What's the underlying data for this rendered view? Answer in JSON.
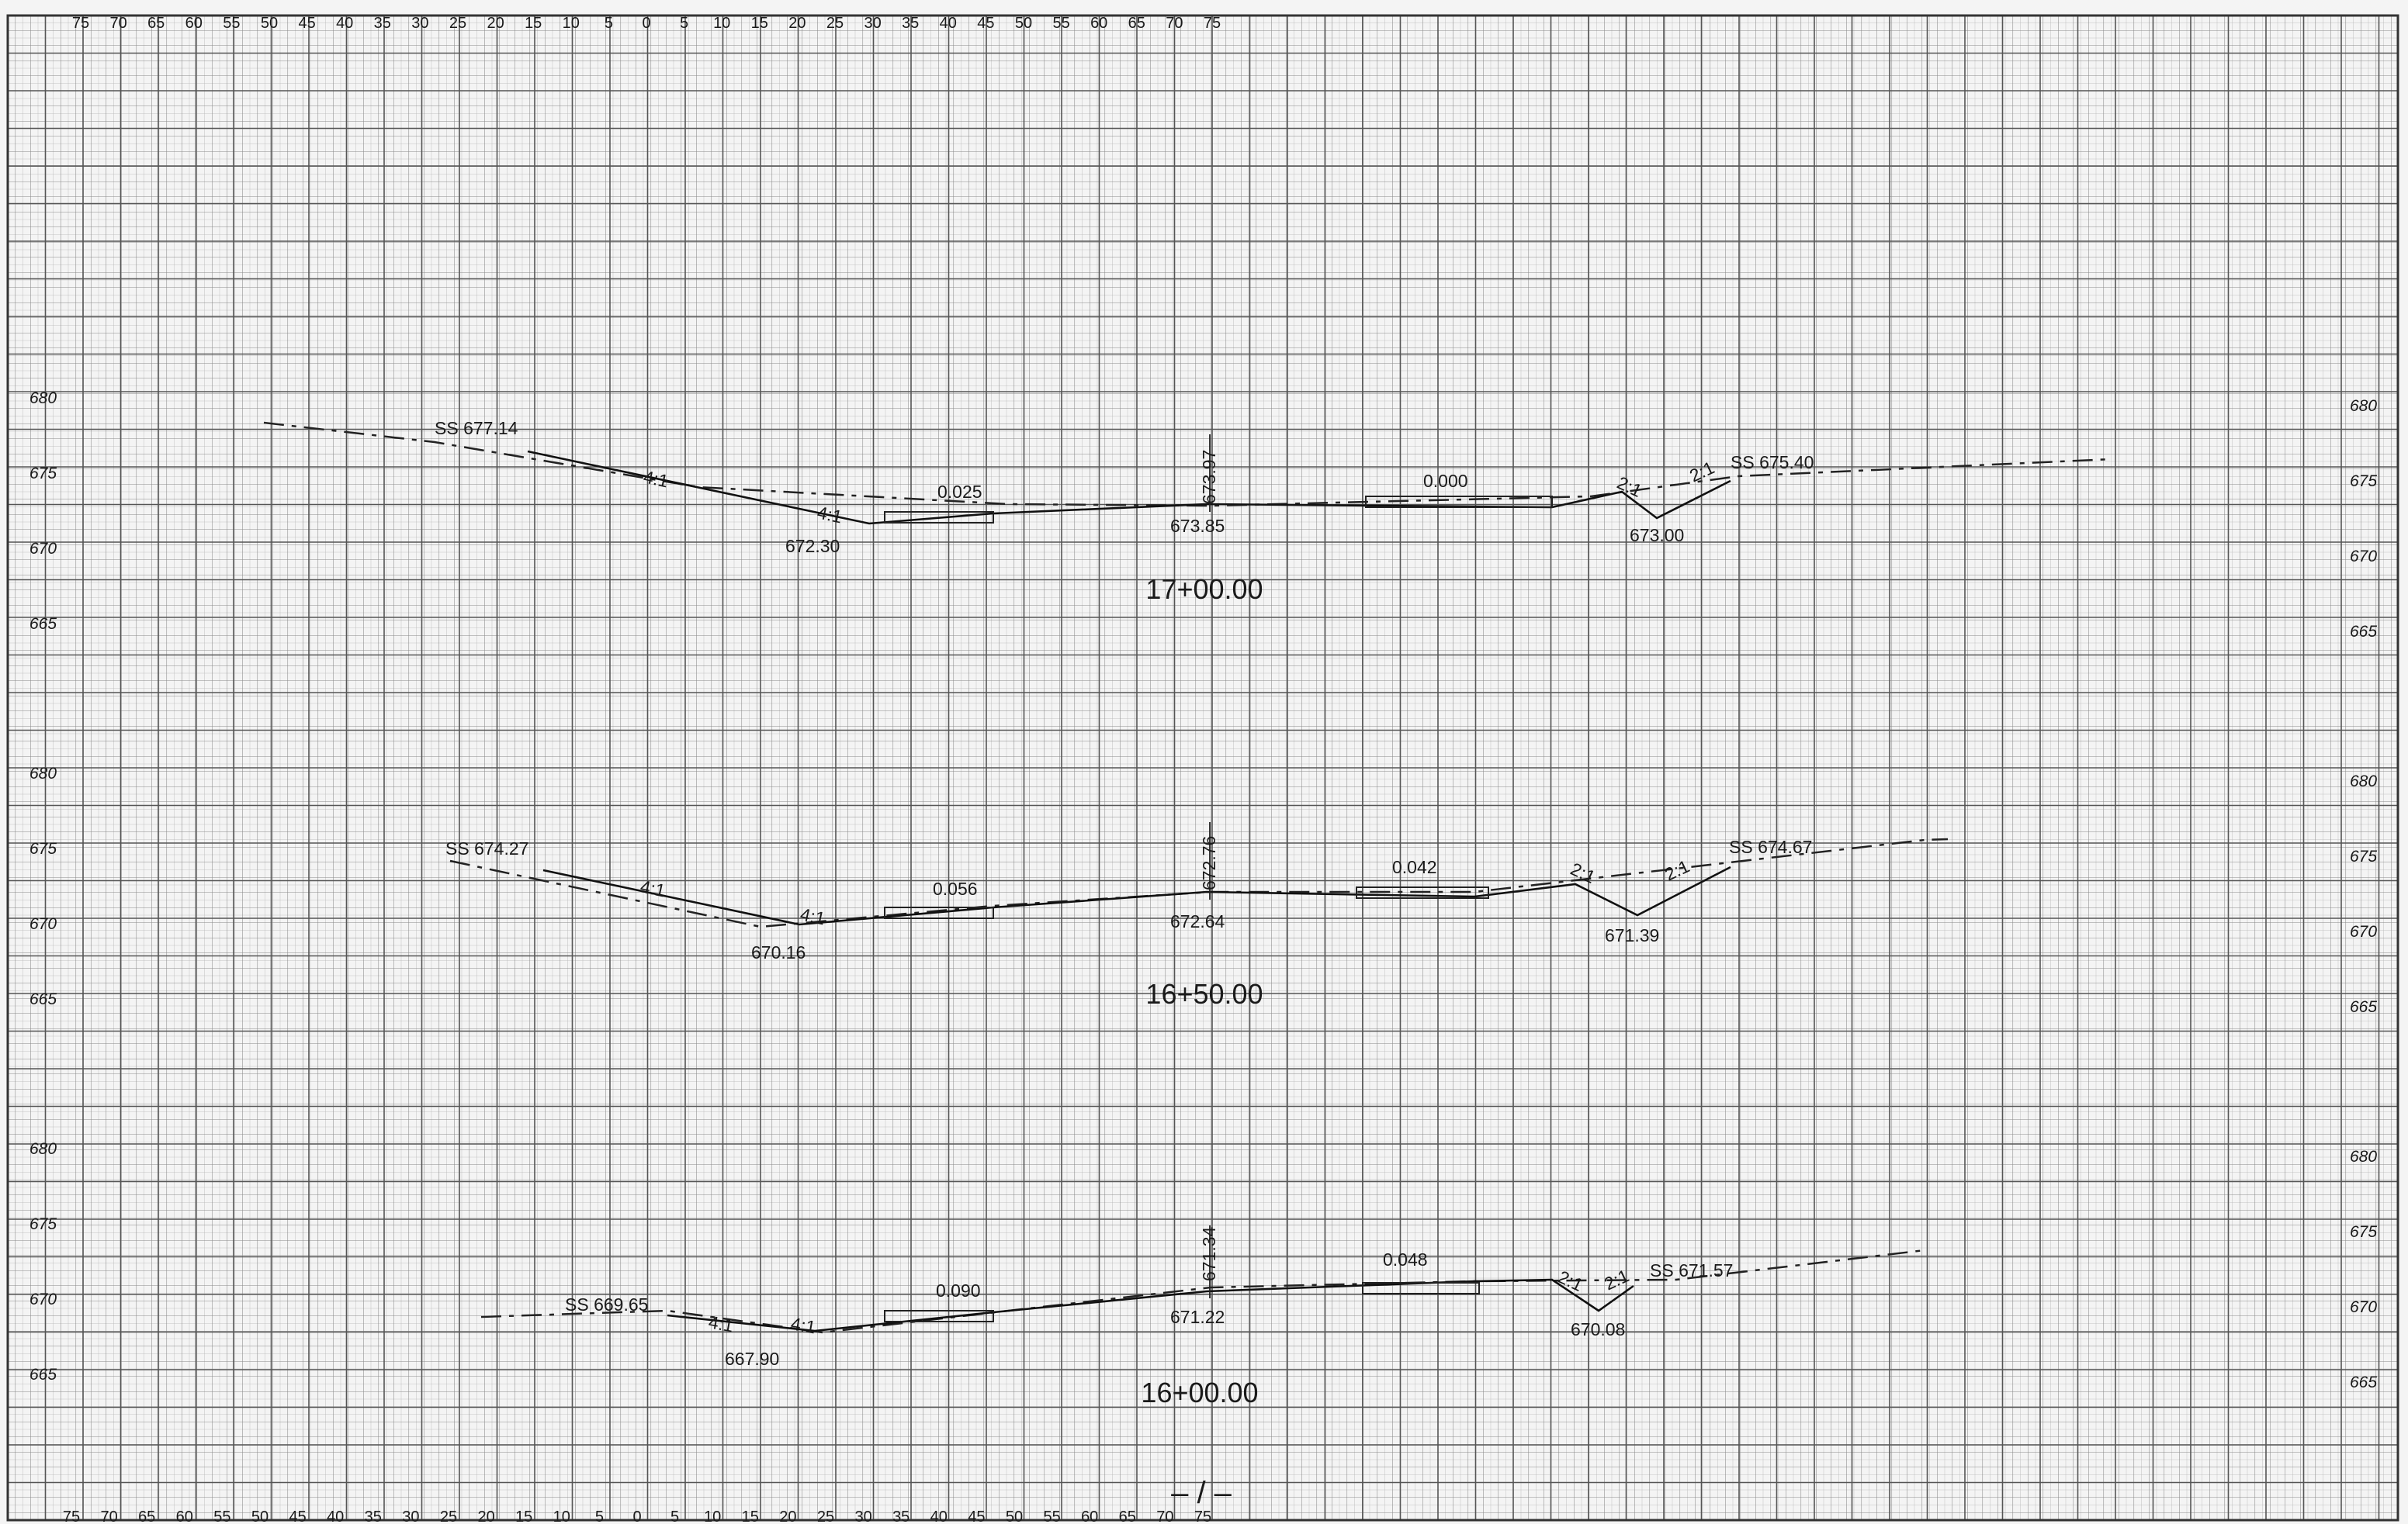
{
  "sheet": {
    "offset_scale_top": [
      "75",
      "70",
      "65",
      "60",
      "55",
      "50",
      "45",
      "40",
      "35",
      "30",
      "25",
      "20",
      "15",
      "10",
      "5",
      "0",
      "5",
      "10",
      "15",
      "20",
      "25",
      "30",
      "35",
      "40",
      "45",
      "50",
      "55",
      "60",
      "65",
      "70",
      "75"
    ],
    "offset_scale_bottom": [
      "75",
      "70",
      "65",
      "60",
      "55",
      "50",
      "45",
      "40",
      "35",
      "30",
      "25",
      "20",
      "15",
      "10",
      "5",
      "0",
      "5",
      "10",
      "15",
      "20",
      "25",
      "30",
      "35",
      "40",
      "45",
      "50",
      "55",
      "60",
      "65",
      "70",
      "75"
    ],
    "page_number": "– / –"
  },
  "sections": [
    {
      "station": "17+00.00",
      "elev_ticks": [
        "680",
        "675",
        "670",
        "665"
      ],
      "annotations": {
        "ss_left": "SS 677.14",
        "ss_right": "SS 675.40",
        "slope_left_outer": "4:1",
        "slope_left_inner": "4:1",
        "slope_right_inner": "2:1",
        "slope_right_outer": "2:1",
        "ditch_left": "672.30",
        "ditch_right": "673.00",
        "grade_left": "0.025",
        "grade_right": "0.000",
        "centerline_top": "673.97",
        "centerline_bottom": "673.85"
      }
    },
    {
      "station": "16+50.00",
      "elev_ticks": [
        "680",
        "675",
        "670",
        "665"
      ],
      "annotations": {
        "ss_left": "SS 674.27",
        "ss_right": "SS 674.67",
        "slope_left_outer": "4:1",
        "slope_left_inner": "4:1",
        "slope_right_inner": "2:1",
        "slope_right_outer": "2:1",
        "ditch_left": "670.16",
        "ditch_right": "671.39",
        "grade_left": "0.056",
        "grade_right": "0.042",
        "centerline_top": "672.76",
        "centerline_bottom": "672.64"
      }
    },
    {
      "station": "16+00.00",
      "elev_ticks": [
        "680",
        "675",
        "670",
        "665"
      ],
      "annotations": {
        "ss_left": "SS 669.65",
        "ss_right": "SS 671.57",
        "slope_left_outer": "4:1",
        "slope_left_inner": "4:1",
        "slope_right_inner": "2:1",
        "slope_right_outer": "2:1",
        "ditch_left": "667.90",
        "ditch_right": "670.08",
        "grade_left": "0.090",
        "grade_right": "0.048",
        "centerline_top": "671.34",
        "centerline_bottom": "671.22"
      }
    }
  ]
}
